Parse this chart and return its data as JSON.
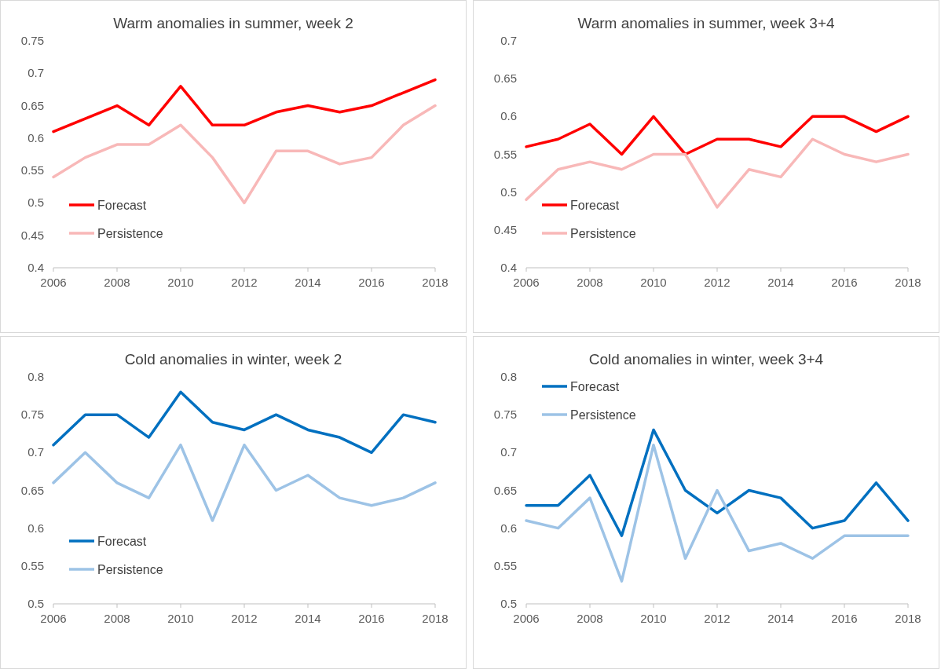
{
  "chart_data": [
    {
      "type": "line",
      "title": "Warm anomalies in summer, week 2",
      "x": [
        2006,
        2007,
        2008,
        2009,
        2010,
        2011,
        2012,
        2013,
        2014,
        2015,
        2016,
        2017,
        2018
      ],
      "xlim": [
        2006,
        2018
      ],
      "xticks": [
        2006,
        2008,
        2010,
        2012,
        2014,
        2016,
        2018
      ],
      "ylim": [
        0.4,
        0.75
      ],
      "yticks": [
        0.4,
        0.45,
        0.5,
        0.55,
        0.6,
        0.65,
        0.7,
        0.75
      ],
      "grid": false,
      "legend": "bottom left",
      "marker": "none",
      "line_style": "solid",
      "series": [
        {
          "name": "Forecast",
          "color": "#ff0000",
          "values": [
            0.61,
            0.63,
            0.65,
            0.62,
            0.68,
            0.62,
            0.62,
            0.64,
            0.65,
            0.64,
            0.65,
            0.67,
            0.69
          ]
        },
        {
          "name": "Persistence",
          "color": "#f8b8b8",
          "values": [
            0.54,
            0.57,
            0.59,
            0.59,
            0.62,
            0.57,
            0.5,
            0.58,
            0.58,
            0.56,
            0.57,
            0.62,
            0.65
          ]
        }
      ]
    },
    {
      "type": "line",
      "title": "Warm anomalies in summer, week 3+4",
      "x": [
        2006,
        2007,
        2008,
        2009,
        2010,
        2011,
        2012,
        2013,
        2014,
        2015,
        2016,
        2017,
        2018
      ],
      "xlim": [
        2006,
        2018
      ],
      "xticks": [
        2006,
        2008,
        2010,
        2012,
        2014,
        2016,
        2018
      ],
      "ylim": [
        0.4,
        0.7
      ],
      "yticks": [
        0.4,
        0.45,
        0.5,
        0.55,
        0.6,
        0.65,
        0.7
      ],
      "grid": false,
      "legend": "bottom left",
      "marker": "none",
      "line_style": "solid",
      "series": [
        {
          "name": "Forecast",
          "color": "#ff0000",
          "values": [
            0.56,
            0.57,
            0.59,
            0.55,
            0.6,
            0.55,
            0.57,
            0.57,
            0.56,
            0.6,
            0.6,
            0.58,
            0.6
          ]
        },
        {
          "name": "Persistence",
          "color": "#f8b8b8",
          "values": [
            0.49,
            0.53,
            0.54,
            0.53,
            0.55,
            0.55,
            0.48,
            0.53,
            0.52,
            0.57,
            0.55,
            0.54,
            0.55
          ]
        }
      ]
    },
    {
      "type": "line",
      "title": "Cold anomalies in winter, week 2",
      "x": [
        2006,
        2007,
        2008,
        2009,
        2010,
        2011,
        2012,
        2013,
        2014,
        2015,
        2016,
        2017,
        2018
      ],
      "xlim": [
        2006,
        2018
      ],
      "xticks": [
        2006,
        2008,
        2010,
        2012,
        2014,
        2016,
        2018
      ],
      "ylim": [
        0.5,
        0.8
      ],
      "yticks": [
        0.5,
        0.55,
        0.6,
        0.65,
        0.7,
        0.75,
        0.8
      ],
      "grid": false,
      "legend": "bottom left",
      "marker": "none",
      "line_style": "solid",
      "series": [
        {
          "name": "Forecast",
          "color": "#0070c0",
          "values": [
            0.71,
            0.75,
            0.75,
            0.72,
            0.78,
            0.74,
            0.73,
            0.75,
            0.73,
            0.72,
            0.7,
            0.75,
            0.74
          ]
        },
        {
          "name": "Persistence",
          "color": "#9dc3e6",
          "values": [
            0.66,
            0.7,
            0.66,
            0.64,
            0.71,
            0.61,
            0.71,
            0.65,
            0.67,
            0.64,
            0.63,
            0.64,
            0.66
          ]
        }
      ]
    },
    {
      "type": "line",
      "title": "Cold anomalies in winter, week 3+4",
      "x": [
        2006,
        2007,
        2008,
        2009,
        2010,
        2011,
        2012,
        2013,
        2014,
        2015,
        2016,
        2017,
        2018
      ],
      "xlim": [
        2006,
        2018
      ],
      "xticks": [
        2006,
        2008,
        2010,
        2012,
        2014,
        2016,
        2018
      ],
      "ylim": [
        0.5,
        0.8
      ],
      "yticks": [
        0.5,
        0.55,
        0.6,
        0.65,
        0.7,
        0.75,
        0.8
      ],
      "grid": false,
      "legend": "top left",
      "marker": "none",
      "line_style": "solid",
      "series": [
        {
          "name": "Forecast",
          "color": "#0070c0",
          "values": [
            0.63,
            0.63,
            0.67,
            0.59,
            0.73,
            0.65,
            0.62,
            0.65,
            0.64,
            0.6,
            0.61,
            0.66,
            0.61
          ]
        },
        {
          "name": "Persistence",
          "color": "#9dc3e6",
          "values": [
            0.61,
            0.6,
            0.64,
            0.53,
            0.71,
            0.56,
            0.65,
            0.57,
            0.58,
            0.56,
            0.59,
            0.59,
            0.59
          ]
        }
      ]
    }
  ]
}
